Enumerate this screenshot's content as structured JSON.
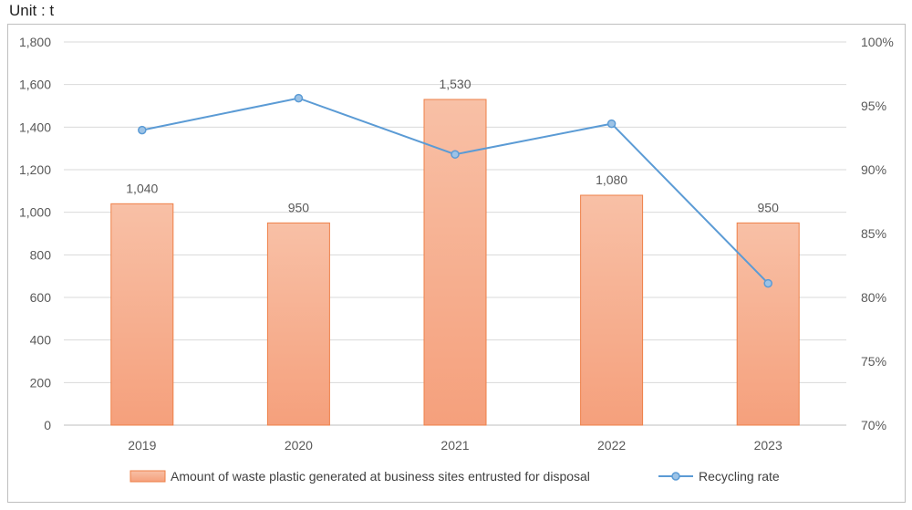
{
  "chart_data": {
    "type": "bar",
    "unit_label": "Unit : t",
    "categories": [
      "2019",
      "2020",
      "2021",
      "2022",
      "2023"
    ],
    "series": [
      {
        "name": "Amount of waste plastic generated at business sites entrusted for disposal",
        "type": "bar",
        "axis": "left",
        "values": [
          1040,
          950,
          1530,
          1080,
          950
        ],
        "data_labels": [
          "1,040",
          "950",
          "1,530",
          "1,080",
          "950"
        ],
        "color": "#f4a07a"
      },
      {
        "name": "Recycling rate",
        "type": "line",
        "axis": "right",
        "values": [
          93.1,
          95.6,
          91.2,
          93.6,
          81.1
        ],
        "color": "#5b9bd5"
      }
    ],
    "y_left": {
      "lim": [
        0,
        1800
      ],
      "ticks": [
        0,
        200,
        400,
        600,
        800,
        1000,
        1200,
        1400,
        1600,
        1800
      ],
      "tick_labels": [
        "0",
        "200",
        "400",
        "600",
        "800",
        "1,000",
        "1,200",
        "1,400",
        "1,600",
        "1,800"
      ]
    },
    "y_right": {
      "lim": [
        70,
        100
      ],
      "ticks": [
        70,
        75,
        80,
        85,
        90,
        95,
        100
      ],
      "tick_labels": [
        "70%",
        "75%",
        "80%",
        "85%",
        "90%",
        "95%",
        "100%"
      ]
    },
    "grid": true,
    "legend_position": "bottom"
  }
}
